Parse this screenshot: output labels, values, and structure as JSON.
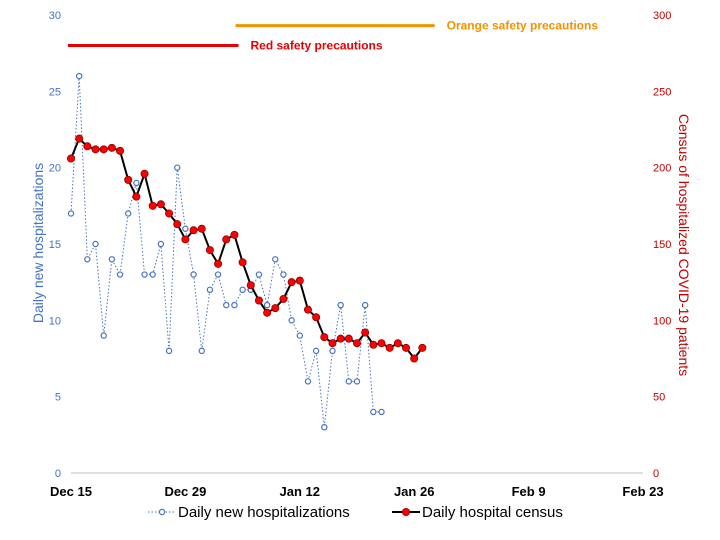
{
  "chart_data": {
    "type": "line",
    "x_ticks": [
      "Dec 15",
      "Dec 29",
      "Jan 12",
      "Jan 26",
      "Feb 9",
      "Feb 23"
    ],
    "x_tick_days": [
      0,
      14,
      28,
      42,
      56,
      70
    ],
    "xlim": [
      0,
      70
    ],
    "ylim_left": [
      0,
      30
    ],
    "ylim_right": [
      0,
      300
    ],
    "y_ticks_left": [
      0,
      5,
      10,
      15,
      20,
      25,
      30
    ],
    "y_ticks_right": [
      0,
      50,
      100,
      150,
      200,
      250,
      300
    ],
    "ylabel_left": "Daily new hospitalizations",
    "ylabel_right": "Census of hospitalized COVID-19 patients",
    "grid": false,
    "legend_position": "bottom",
    "series": [
      {
        "name": "Daily new hospitalizations",
        "axis": "left",
        "color": "#4472C4",
        "style": "dotted line with hollow circle markers",
        "x": [
          0,
          1,
          2,
          3,
          4,
          5,
          6,
          7,
          8,
          9,
          10,
          11,
          12,
          13,
          14,
          15,
          16,
          17,
          18,
          19,
          20,
          21,
          22,
          23,
          24,
          25,
          26,
          27,
          28,
          29,
          30,
          31,
          32,
          33,
          34,
          35,
          36,
          37,
          38,
          39,
          40,
          41
        ],
        "values": [
          17,
          26,
          14,
          15,
          9,
          14,
          13,
          17,
          19,
          13,
          13,
          15,
          8,
          20,
          16,
          13,
          8,
          12,
          13,
          11,
          11,
          12,
          12,
          13,
          11,
          14,
          13,
          10,
          9,
          6,
          8,
          3,
          8,
          11,
          6,
          6,
          11,
          4,
          4,
          null,
          null,
          null
        ]
      },
      {
        "name": "Daily hospital census",
        "axis": "right",
        "color": "#000000",
        "marker_color": "#FF0000",
        "style": "solid line with red filled circle markers",
        "x": [
          0,
          1,
          2,
          3,
          4,
          5,
          6,
          7,
          8,
          9,
          10,
          11,
          12,
          13,
          14,
          15,
          16,
          17,
          18,
          19,
          20,
          21,
          22,
          23,
          24,
          25,
          26,
          27,
          28,
          29,
          30,
          31,
          32,
          33,
          34,
          35,
          36,
          37,
          38,
          39,
          40,
          41,
          42,
          43
        ],
        "values": [
          206,
          219,
          214,
          212,
          212,
          213,
          211,
          192,
          181,
          196,
          175,
          176,
          170,
          163,
          153,
          159,
          160,
          146,
          137,
          153,
          156,
          138,
          123,
          113,
          105,
          108,
          114,
          125,
          126,
          107,
          102,
          89,
          85,
          88,
          88,
          85,
          92,
          84,
          85,
          82,
          85,
          82,
          75,
          82
        ]
      }
    ],
    "annotations": [
      {
        "text": "Red safety precautions",
        "color": "#E60000",
        "x_start": 0,
        "x_end": 20.5,
        "level": 280
      },
      {
        "text": "Orange safety precautions",
        "color": "#F39200",
        "x_start": 20.5,
        "x_end": 44.5,
        "level": 293
      }
    ]
  }
}
